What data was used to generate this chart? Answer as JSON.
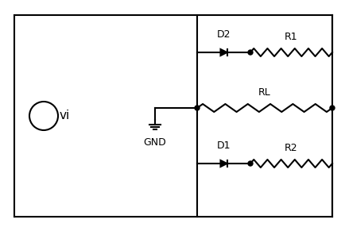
{
  "bg_color": "#ffffff",
  "line_color": "#000000",
  "text_color": "#000000",
  "fig_width": 4.34,
  "fig_height": 2.91,
  "labels": {
    "vi": "vi",
    "gnd": "GND",
    "D1": "D1",
    "D2": "D2",
    "R1": "R1",
    "R2": "R2",
    "RL": "RL"
  }
}
